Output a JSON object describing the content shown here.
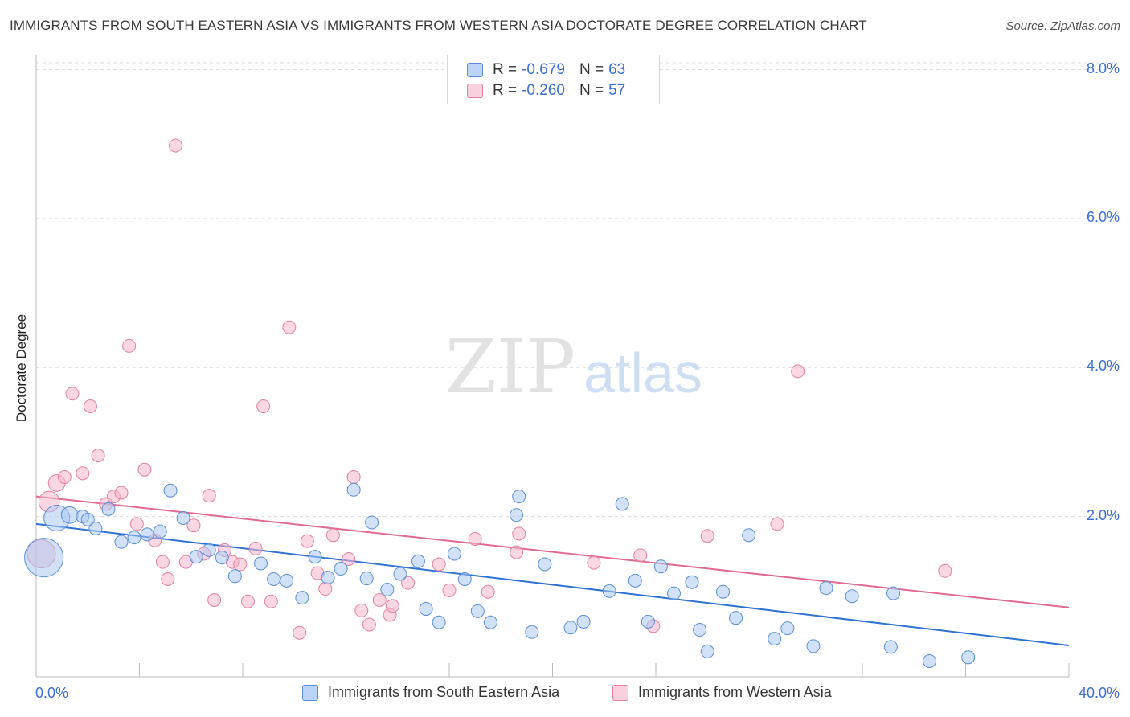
{
  "title": "IMMIGRANTS FROM SOUTH EASTERN ASIA VS IMMIGRANTS FROM WESTERN ASIA DOCTORATE DEGREE CORRELATION CHART",
  "source": "Source: ZipAtlas.com",
  "watermark": {
    "zip": "ZIP",
    "atlas": "atlas"
  },
  "legend": {
    "r_label": "R =",
    "n_label": "N =",
    "rows": [
      {
        "name": "Immigrants from South Eastern Asia",
        "r": "-0.679",
        "n": "63"
      },
      {
        "name": "Immigrants from Western Asia",
        "r": "-0.260",
        "n": "57"
      }
    ]
  },
  "colors": {
    "blue_fill": "#a9c8f2",
    "blue_stroke": "#5b8fd9",
    "blue_line": "#2f72d1",
    "pink_fill": "#f6b7cb",
    "pink_stroke": "#e57fa1",
    "pink_line": "#e06a93",
    "axis_label": "#3a6fd8",
    "grid": "#dcdcdc"
  },
  "chart_data": {
    "type": "scatter",
    "title": "IMMIGRANTS FROM SOUTH EASTERN ASIA VS IMMIGRANTS FROM WESTERN ASIA DOCTORATE DEGREE CORRELATION CHART",
    "xlabel": "",
    "ylabel": "Doctorate Degree",
    "xlim": [
      0,
      40
    ],
    "ylim": [
      0,
      8.2
    ],
    "x_tick_labels": [
      "0.0%",
      "40.0%"
    ],
    "y_ticks": [
      2,
      4,
      6,
      8
    ],
    "y_tick_labels": [
      "2.0%",
      "4.0%",
      "6.0%",
      "8.0%"
    ],
    "grid": true,
    "series": [
      {
        "name": "Immigrants from South Eastern Asia",
        "r": -0.679,
        "n": 63,
        "trend": {
          "x": [
            0,
            40
          ],
          "y": [
            1.9,
            0.27
          ]
        },
        "points": [
          {
            "x": 0.3,
            "y": 1.45,
            "s": 3
          },
          {
            "x": 0.8,
            "y": 1.98,
            "s": 2
          },
          {
            "x": 1.3,
            "y": 2.02,
            "s": 1.3
          },
          {
            "x": 1.8,
            "y": 2.0,
            "s": 1
          },
          {
            "x": 2.3,
            "y": 1.84,
            "s": 1
          },
          {
            "x": 2.8,
            "y": 2.1,
            "s": 1
          },
          {
            "x": 3.3,
            "y": 1.66,
            "s": 1
          },
          {
            "x": 3.8,
            "y": 1.72,
            "s": 1
          },
          {
            "x": 4.3,
            "y": 1.76,
            "s": 1
          },
          {
            "x": 4.8,
            "y": 1.8,
            "s": 1
          },
          {
            "x": 5.2,
            "y": 2.35,
            "s": 1
          },
          {
            "x": 5.7,
            "y": 1.98,
            "s": 1
          },
          {
            "x": 6.2,
            "y": 1.46,
            "s": 1
          },
          {
            "x": 6.7,
            "y": 1.55,
            "s": 1
          },
          {
            "x": 7.2,
            "y": 1.45,
            "s": 1
          },
          {
            "x": 7.7,
            "y": 1.2,
            "s": 1
          },
          {
            "x": 8.7,
            "y": 1.37,
            "s": 1
          },
          {
            "x": 9.2,
            "y": 1.16,
            "s": 1
          },
          {
            "x": 9.7,
            "y": 1.14,
            "s": 1
          },
          {
            "x": 10.3,
            "y": 0.91,
            "s": 1
          },
          {
            "x": 10.8,
            "y": 1.46,
            "s": 1
          },
          {
            "x": 11.3,
            "y": 1.18,
            "s": 1
          },
          {
            "x": 11.8,
            "y": 1.3,
            "s": 1
          },
          {
            "x": 12.3,
            "y": 2.36,
            "s": 1
          },
          {
            "x": 12.8,
            "y": 1.17,
            "s": 1
          },
          {
            "x": 13.0,
            "y": 1.92,
            "s": 1
          },
          {
            "x": 13.6,
            "y": 1.02,
            "s": 1
          },
          {
            "x": 14.1,
            "y": 1.23,
            "s": 1
          },
          {
            "x": 15.1,
            "y": 0.76,
            "s": 1
          },
          {
            "x": 14.8,
            "y": 1.4,
            "s": 1
          },
          {
            "x": 15.6,
            "y": 0.58,
            "s": 1
          },
          {
            "x": 16.2,
            "y": 1.5,
            "s": 1
          },
          {
            "x": 16.6,
            "y": 1.16,
            "s": 1
          },
          {
            "x": 17.1,
            "y": 0.73,
            "s": 1
          },
          {
            "x": 17.6,
            "y": 0.58,
            "s": 1
          },
          {
            "x": 18.6,
            "y": 2.02,
            "s": 1
          },
          {
            "x": 18.7,
            "y": 2.27,
            "s": 1
          },
          {
            "x": 19.2,
            "y": 0.45,
            "s": 1
          },
          {
            "x": 19.7,
            "y": 1.36,
            "s": 1
          },
          {
            "x": 20.7,
            "y": 0.51,
            "s": 1
          },
          {
            "x": 21.2,
            "y": 0.59,
            "s": 1
          },
          {
            "x": 22.2,
            "y": 1.0,
            "s": 1
          },
          {
            "x": 22.7,
            "y": 2.17,
            "s": 1
          },
          {
            "x": 23.2,
            "y": 1.14,
            "s": 1
          },
          {
            "x": 23.7,
            "y": 0.59,
            "s": 1
          },
          {
            "x": 24.2,
            "y": 1.33,
            "s": 1
          },
          {
            "x": 24.7,
            "y": 0.97,
            "s": 1
          },
          {
            "x": 25.7,
            "y": 0.48,
            "s": 1
          },
          {
            "x": 25.4,
            "y": 1.12,
            "s": 1
          },
          {
            "x": 26.6,
            "y": 0.99,
            "s": 1
          },
          {
            "x": 26.0,
            "y": 0.19,
            "s": 1
          },
          {
            "x": 27.1,
            "y": 0.64,
            "s": 1
          },
          {
            "x": 27.6,
            "y": 1.75,
            "s": 1
          },
          {
            "x": 28.6,
            "y": 0.36,
            "s": 1
          },
          {
            "x": 29.1,
            "y": 0.5,
            "s": 1
          },
          {
            "x": 30.1,
            "y": 0.26,
            "s": 1
          },
          {
            "x": 30.6,
            "y": 1.04,
            "s": 1
          },
          {
            "x": 31.6,
            "y": 0.93,
            "s": 1
          },
          {
            "x": 33.1,
            "y": 0.25,
            "s": 1
          },
          {
            "x": 33.2,
            "y": 0.97,
            "s": 1
          },
          {
            "x": 34.6,
            "y": 0.06,
            "s": 1
          },
          {
            "x": 36.1,
            "y": 0.11,
            "s": 1
          },
          {
            "x": 2.0,
            "y": 1.96,
            "s": 1
          }
        ]
      },
      {
        "name": "Immigrants from Western Asia",
        "r": -0.26,
        "n": 57,
        "trend": {
          "x": [
            0,
            40
          ],
          "y": [
            2.27,
            0.78
          ]
        },
        "points": [
          {
            "x": 0.2,
            "y": 1.5,
            "s": 2.2
          },
          {
            "x": 0.5,
            "y": 2.2,
            "s": 1.6
          },
          {
            "x": 0.8,
            "y": 2.45,
            "s": 1.3
          },
          {
            "x": 1.1,
            "y": 2.53,
            "s": 1
          },
          {
            "x": 1.4,
            "y": 3.65,
            "s": 1
          },
          {
            "x": 1.8,
            "y": 2.58,
            "s": 1
          },
          {
            "x": 2.1,
            "y": 3.48,
            "s": 1
          },
          {
            "x": 2.4,
            "y": 2.82,
            "s": 1
          },
          {
            "x": 2.7,
            "y": 2.17,
            "s": 1
          },
          {
            "x": 3.0,
            "y": 2.27,
            "s": 1
          },
          {
            "x": 3.3,
            "y": 2.32,
            "s": 1
          },
          {
            "x": 3.6,
            "y": 4.29,
            "s": 1
          },
          {
            "x": 3.9,
            "y": 1.9,
            "s": 1
          },
          {
            "x": 4.2,
            "y": 2.63,
            "s": 1
          },
          {
            "x": 4.6,
            "y": 1.68,
            "s": 1
          },
          {
            "x": 4.9,
            "y": 1.39,
            "s": 1
          },
          {
            "x": 5.1,
            "y": 1.16,
            "s": 1
          },
          {
            "x": 5.4,
            "y": 6.98,
            "s": 1
          },
          {
            "x": 5.8,
            "y": 1.39,
            "s": 1
          },
          {
            "x": 6.1,
            "y": 1.88,
            "s": 1
          },
          {
            "x": 6.5,
            "y": 1.5,
            "s": 1
          },
          {
            "x": 6.7,
            "y": 2.28,
            "s": 1
          },
          {
            "x": 6.9,
            "y": 0.88,
            "s": 1
          },
          {
            "x": 7.3,
            "y": 1.55,
            "s": 1
          },
          {
            "x": 7.6,
            "y": 1.39,
            "s": 1
          },
          {
            "x": 7.9,
            "y": 1.36,
            "s": 1
          },
          {
            "x": 8.2,
            "y": 0.86,
            "s": 1
          },
          {
            "x": 8.5,
            "y": 1.57,
            "s": 1
          },
          {
            "x": 8.8,
            "y": 3.48,
            "s": 1
          },
          {
            "x": 9.1,
            "y": 0.86,
            "s": 1
          },
          {
            "x": 9.8,
            "y": 4.54,
            "s": 1
          },
          {
            "x": 10.2,
            "y": 0.44,
            "s": 1
          },
          {
            "x": 10.5,
            "y": 1.67,
            "s": 1
          },
          {
            "x": 10.9,
            "y": 1.24,
            "s": 1
          },
          {
            "x": 11.2,
            "y": 1.03,
            "s": 1
          },
          {
            "x": 11.5,
            "y": 1.75,
            "s": 1
          },
          {
            "x": 12.1,
            "y": 1.43,
            "s": 1
          },
          {
            "x": 12.3,
            "y": 2.53,
            "s": 1
          },
          {
            "x": 12.9,
            "y": 0.55,
            "s": 1
          },
          {
            "x": 12.6,
            "y": 0.74,
            "s": 1
          },
          {
            "x": 13.3,
            "y": 0.88,
            "s": 1
          },
          {
            "x": 13.7,
            "y": 0.68,
            "s": 1
          },
          {
            "x": 13.8,
            "y": 0.8,
            "s": 1
          },
          {
            "x": 14.4,
            "y": 1.11,
            "s": 1
          },
          {
            "x": 15.6,
            "y": 1.36,
            "s": 1
          },
          {
            "x": 16.0,
            "y": 1.01,
            "s": 1
          },
          {
            "x": 17.0,
            "y": 1.7,
            "s": 1
          },
          {
            "x": 17.5,
            "y": 0.99,
            "s": 1
          },
          {
            "x": 18.6,
            "y": 1.52,
            "s": 1
          },
          {
            "x": 18.7,
            "y": 1.77,
            "s": 1
          },
          {
            "x": 21.6,
            "y": 1.38,
            "s": 1
          },
          {
            "x": 23.4,
            "y": 1.48,
            "s": 1
          },
          {
            "x": 23.9,
            "y": 0.53,
            "s": 1
          },
          {
            "x": 26.0,
            "y": 1.74,
            "s": 1
          },
          {
            "x": 28.7,
            "y": 1.9,
            "s": 1
          },
          {
            "x": 29.5,
            "y": 3.95,
            "s": 1
          },
          {
            "x": 35.2,
            "y": 1.27,
            "s": 1
          }
        ]
      }
    ]
  }
}
